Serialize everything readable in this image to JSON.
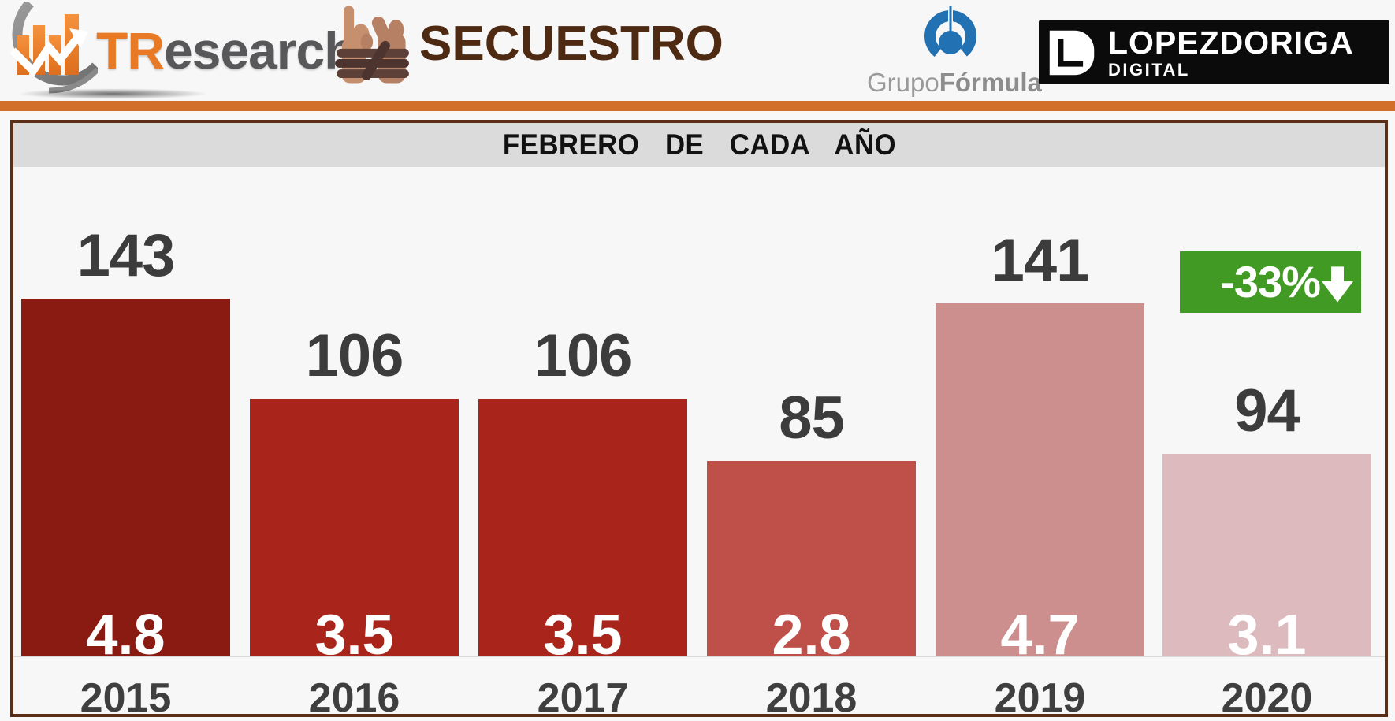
{
  "header": {
    "brand_tr": "TR",
    "brand_rest": "esearch",
    "title": "SECUESTRO",
    "grupoformula_grupo": "Grupo",
    "grupoformula_formula": "Fórmula",
    "grupoformula_reg": "®",
    "lopezdoriga_line1": "LOPEZDORIGA",
    "lopezdoriga_line2": "DIGITAL"
  },
  "chart_data": {
    "type": "bar",
    "title": "FEBRERO  DE  CADA  AÑO",
    "categories": [
      "2015",
      "2016",
      "2017",
      "2018",
      "2019",
      "2020"
    ],
    "series": [
      {
        "name": "secuestros_febrero_total",
        "values": [
          143,
          106,
          106,
          85,
          141,
          94
        ]
      },
      {
        "name": "promedio_diario",
        "values": [
          4.8,
          3.5,
          3.5,
          2.8,
          4.7,
          3.1
        ]
      }
    ],
    "bar_colors": [
      "#8a1b12",
      "#a9251b",
      "#a9251b",
      "#bf4f49",
      "#cc8f8e",
      "#dcbabd"
    ],
    "value_label_color": "#3c3c3c",
    "inner_label_color": "#ffffff",
    "badge": {
      "text": "-33%",
      "arrow": "down",
      "bg": "#419a23"
    },
    "ylim": [
      0,
      150
    ],
    "grid": false,
    "legend": false
  }
}
